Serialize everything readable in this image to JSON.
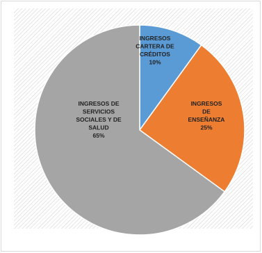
{
  "chart_data": {
    "type": "pie",
    "start_angle_deg": 0,
    "slices": [
      {
        "label_lines": [
          "INGRESOS",
          "CARTERA DE",
          "CRÉDITOS"
        ],
        "pct_label": "10%",
        "value": 10,
        "color": "#5b9bd5"
      },
      {
        "label_lines": [
          "INGRESOS",
          "DE",
          "ENSEÑANZA"
        ],
        "pct_label": "25%",
        "value": 25,
        "color": "#ed7d31"
      },
      {
        "label_lines": [
          "INGRESOS DE",
          "SERVICIOS",
          "SOCIALES Y DE",
          "SALUD"
        ],
        "pct_label": "65%",
        "value": 65,
        "color": "#a5a5a5"
      }
    ]
  }
}
